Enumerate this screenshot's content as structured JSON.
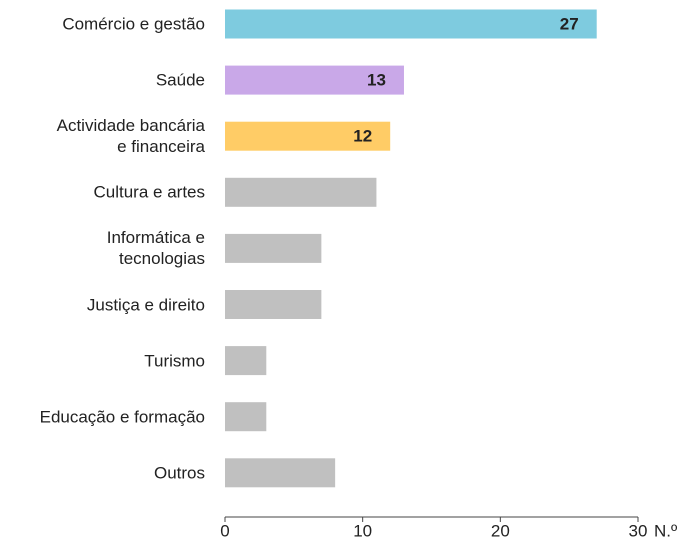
{
  "chart_data": {
    "type": "hbar",
    "categories": [
      "Comércio e gestão",
      "Saúde",
      "Actividade bancária\ne financeira",
      "Cultura e artes",
      "Informática e\ntecnologias",
      "Justiça e direito",
      "Turismo",
      "Educação e formação",
      "Outros"
    ],
    "values": [
      27,
      13,
      12,
      11,
      7,
      7,
      3,
      3,
      8
    ],
    "value_labels": [
      "27",
      "13",
      "12",
      null,
      null,
      null,
      null,
      null,
      null
    ],
    "colors": [
      "#7ecbdf",
      "#c9a8e8",
      "#ffcc66",
      "#c0c0c0",
      "#c0c0c0",
      "#c0c0c0",
      "#c0c0c0",
      "#c0c0c0",
      "#c0c0c0"
    ],
    "xlabel": "N.º",
    "xlim": [
      0,
      30
    ],
    "xticks": [
      0,
      10,
      20,
      30
    ]
  }
}
